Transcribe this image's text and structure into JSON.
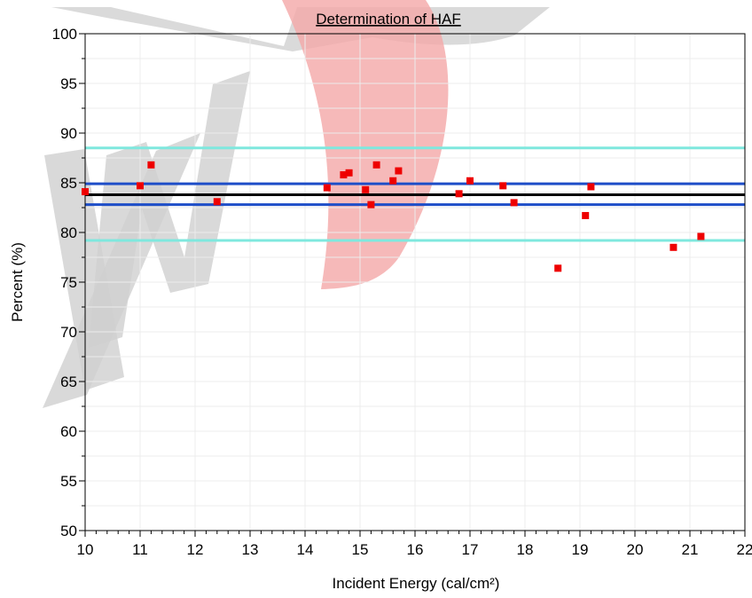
{
  "chart_data": {
    "type": "scatter",
    "title": "Determination of HAF",
    "xlabel": "Incident Energy (cal/cm²)",
    "ylabel": "Percent (%)",
    "xlim": [
      10,
      22
    ],
    "ylim": [
      50,
      100
    ],
    "x_ticks": [
      10,
      11,
      12,
      13,
      14,
      15,
      16,
      17,
      18,
      19,
      20,
      21,
      22
    ],
    "y_ticks": [
      50,
      55,
      60,
      65,
      70,
      75,
      80,
      85,
      90,
      95,
      100
    ],
    "grid": true,
    "legend": "none",
    "series": [
      {
        "marker": "square",
        "color": "#ee0000",
        "points": [
          [
            10.0,
            84.1
          ],
          [
            11.0,
            84.7
          ],
          [
            11.2,
            86.8
          ],
          [
            12.4,
            83.1
          ],
          [
            14.4,
            84.5
          ],
          [
            14.7,
            85.8
          ],
          [
            14.8,
            86.0
          ],
          [
            15.1,
            84.3
          ],
          [
            15.2,
            82.8
          ],
          [
            15.3,
            86.8
          ],
          [
            15.6,
            85.2
          ],
          [
            15.7,
            86.2
          ],
          [
            16.8,
            83.9
          ],
          [
            17.0,
            85.2
          ],
          [
            17.6,
            84.7
          ],
          [
            17.8,
            83.0
          ],
          [
            18.6,
            76.4
          ],
          [
            19.1,
            81.7
          ],
          [
            19.2,
            84.6
          ],
          [
            20.7,
            78.5
          ],
          [
            21.2,
            79.6
          ]
        ]
      }
    ],
    "reference_lines": [
      {
        "y": 88.5,
        "color": "#7fe8de"
      },
      {
        "y": 84.9,
        "color": "#1e4ec8"
      },
      {
        "y": 83.8,
        "color": "#000000"
      },
      {
        "y": 82.8,
        "color": "#1e4ec8"
      },
      {
        "y": 79.2,
        "color": "#7fe8de"
      }
    ]
  },
  "watermark": {
    "text": "XM",
    "colors": {
      "gray": "#d4d4d4",
      "red": "#f4a8a8"
    }
  }
}
